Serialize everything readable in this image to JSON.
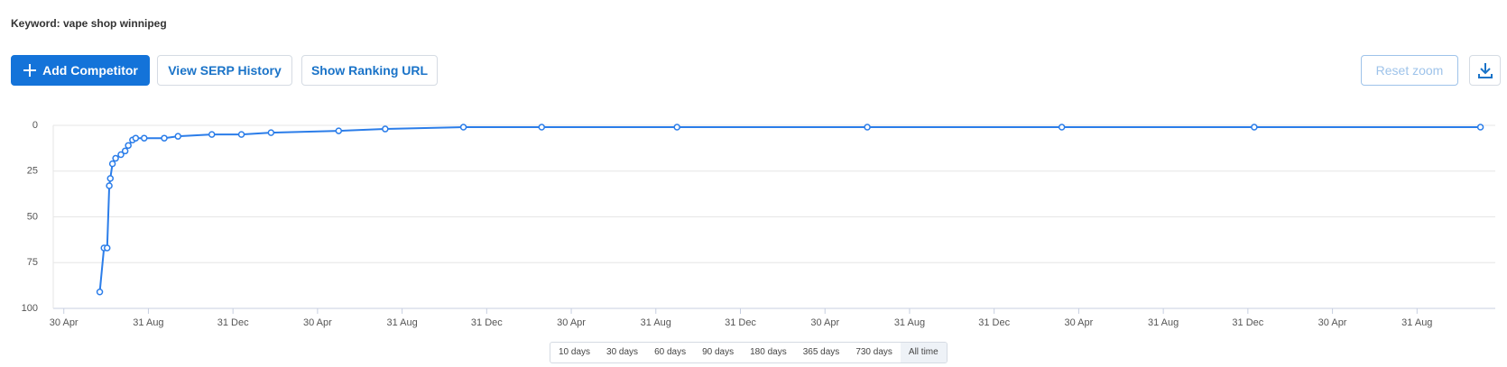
{
  "header": {
    "keyword": "Keyword: vape shop winnipeg"
  },
  "buttons": {
    "add_competitor": "Add Competitor",
    "serp_history": "View SERP History",
    "ranking_url": "Show Ranking URL",
    "reset_zoom": "Reset zoom"
  },
  "ranges": [
    "10 days",
    "30 days",
    "60 days",
    "90 days",
    "180 days",
    "365 days",
    "730 days",
    "All time"
  ],
  "chart_data": {
    "type": "line",
    "y_reversed": true,
    "grid": true,
    "color": "#2b7de9",
    "x": [
      1.7,
      1.9,
      2.05,
      2.15,
      2.2,
      2.3,
      2.45,
      2.7,
      2.9,
      3.05,
      3.25,
      3.4,
      3.8,
      4.75,
      5.4,
      7.0,
      8.4,
      9.8,
      13,
      15.2,
      18.9,
      22.6,
      29,
      38,
      47.2,
      56.3,
      67
    ],
    "values": [
      91,
      67,
      67,
      33,
      29,
      21,
      18,
      16,
      14,
      11,
      8,
      7,
      7,
      7,
      6,
      5,
      5,
      4,
      3,
      2,
      1,
      1,
      1,
      1,
      1,
      1,
      1
    ],
    "xlim": [
      -0.5,
      67.7
    ],
    "xticks": [
      {
        "value": 0,
        "label": "30 Apr"
      },
      {
        "value": 4,
        "label": "31 Aug"
      },
      {
        "value": 8,
        "label": "31 Dec"
      },
      {
        "value": 12,
        "label": "30 Apr"
      },
      {
        "value": 16,
        "label": "31 Aug"
      },
      {
        "value": 20,
        "label": "31 Dec"
      },
      {
        "value": 24,
        "label": "30 Apr"
      },
      {
        "value": 28,
        "label": "31 Aug"
      },
      {
        "value": 32,
        "label": "31 Dec"
      },
      {
        "value": 36,
        "label": "30 Apr"
      },
      {
        "value": 40,
        "label": "31 Aug"
      },
      {
        "value": 44,
        "label": "31 Dec"
      },
      {
        "value": 48,
        "label": "30 Apr"
      },
      {
        "value": 52,
        "label": "31 Aug"
      },
      {
        "value": 56,
        "label": "31 Dec"
      },
      {
        "value": 60,
        "label": "30 Apr"
      },
      {
        "value": 64,
        "label": "31 Aug"
      }
    ],
    "ylim": [
      0,
      100
    ],
    "yticks": [
      0,
      25,
      50,
      75,
      100
    ]
  }
}
